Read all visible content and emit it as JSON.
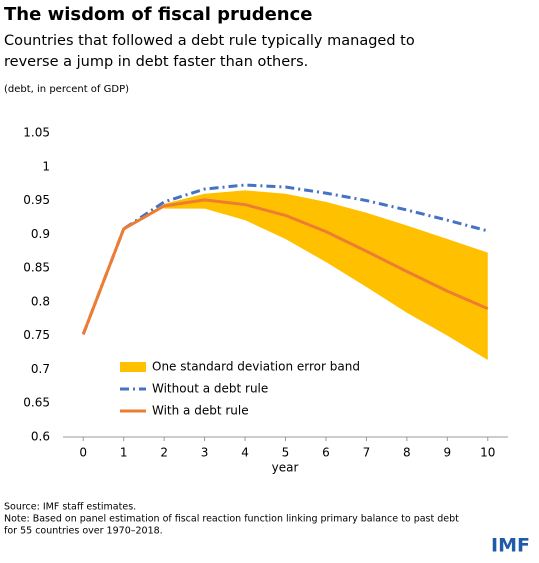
{
  "chart_data": {
    "type": "line",
    "title": "The wisdom of fiscal prudence",
    "subtitle": [
      "Countries that followed a debt rule typically managed to",
      "reverse a jump in debt faster than others."
    ],
    "unit_note": "(debt, in percent of GDP)",
    "x_label": "year",
    "x": [
      0,
      1,
      2,
      3,
      4,
      5,
      6,
      7,
      8,
      9,
      10
    ],
    "xlim": [
      -0.5,
      10.5
    ],
    "xticks": [
      0,
      1,
      2,
      3,
      4,
      5,
      6,
      7,
      8,
      9,
      10
    ],
    "ylim": [
      0.6,
      1.05
    ],
    "yticks": [
      0.6,
      0.65,
      0.7,
      0.75,
      0.8,
      0.85,
      0.9,
      0.95,
      1,
      1.05
    ],
    "band": {
      "name": "One standard deviation error band",
      "color": "#ffc000",
      "upper": [
        null,
        null,
        0.945,
        0.96,
        0.965,
        0.96,
        0.948,
        0.932,
        0.913,
        0.893,
        0.873
      ],
      "lower": [
        null,
        null,
        0.938,
        0.938,
        0.921,
        0.893,
        0.859,
        0.822,
        0.784,
        0.75,
        0.714
      ]
    },
    "series": [
      {
        "name": "Without a debt rule",
        "color": "#4472c4",
        "dash": "dash-dot",
        "values": [
          0.752,
          0.908,
          0.948,
          0.967,
          0.973,
          0.97,
          0.961,
          0.95,
          0.936,
          0.921,
          0.905
        ]
      },
      {
        "name": "With a debt rule",
        "color": "#ed7d31",
        "dash": "solid",
        "values": [
          0.752,
          0.908,
          0.942,
          0.951,
          0.944,
          0.928,
          0.904,
          0.875,
          0.845,
          0.816,
          0.79
        ]
      }
    ],
    "source": "Source: IMF staff estimates.",
    "note": [
      "Note: Based on panel estimation of fiscal reaction function linking primary balance to past debt",
      "for 55 countries over 1970–2018."
    ],
    "logo": "IMF"
  }
}
